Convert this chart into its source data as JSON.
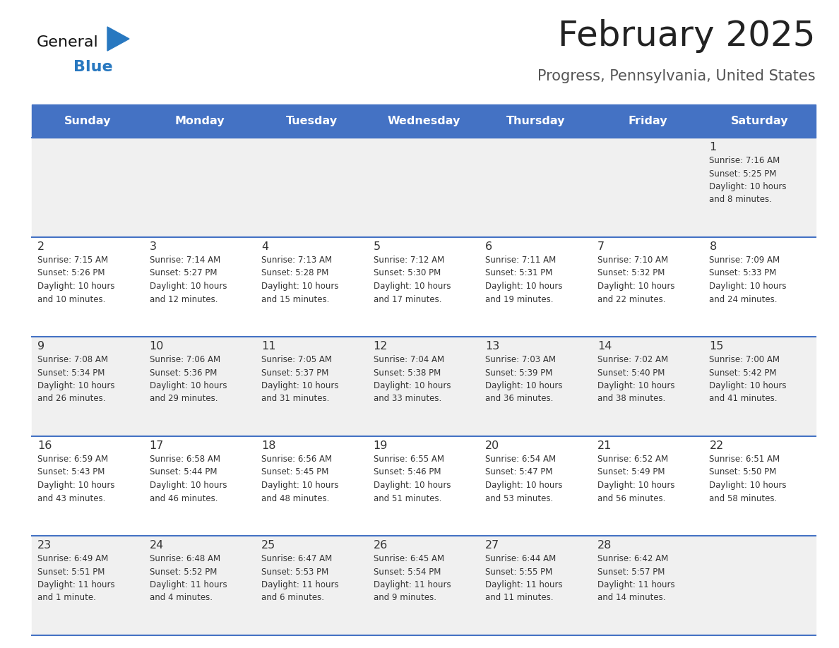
{
  "title": "February 2025",
  "subtitle": "Progress, Pennsylvania, United States",
  "header_color": "#4472C4",
  "header_text_color": "#FFFFFF",
  "days_of_week": [
    "Sunday",
    "Monday",
    "Tuesday",
    "Wednesday",
    "Thursday",
    "Friday",
    "Saturday"
  ],
  "bg_color": "#FFFFFF",
  "row_colors": [
    "#F0F0F0",
    "#FFFFFF",
    "#F0F0F0",
    "#FFFFFF",
    "#F0F0F0"
  ],
  "cell_border_color": "#4472C4",
  "day_number_color": "#333333",
  "text_color": "#333333",
  "title_color": "#222222",
  "subtitle_color": "#555555",
  "generalblue_black": "#111111",
  "generalblue_blue": "#2878C0",
  "calendar_data": [
    [
      {
        "day": 0,
        "info": ""
      },
      {
        "day": 0,
        "info": ""
      },
      {
        "day": 0,
        "info": ""
      },
      {
        "day": 0,
        "info": ""
      },
      {
        "day": 0,
        "info": ""
      },
      {
        "day": 0,
        "info": ""
      },
      {
        "day": 1,
        "info": "Sunrise: 7:16 AM\nSunset: 5:25 PM\nDaylight: 10 hours\nand 8 minutes."
      }
    ],
    [
      {
        "day": 2,
        "info": "Sunrise: 7:15 AM\nSunset: 5:26 PM\nDaylight: 10 hours\nand 10 minutes."
      },
      {
        "day": 3,
        "info": "Sunrise: 7:14 AM\nSunset: 5:27 PM\nDaylight: 10 hours\nand 12 minutes."
      },
      {
        "day": 4,
        "info": "Sunrise: 7:13 AM\nSunset: 5:28 PM\nDaylight: 10 hours\nand 15 minutes."
      },
      {
        "day": 5,
        "info": "Sunrise: 7:12 AM\nSunset: 5:30 PM\nDaylight: 10 hours\nand 17 minutes."
      },
      {
        "day": 6,
        "info": "Sunrise: 7:11 AM\nSunset: 5:31 PM\nDaylight: 10 hours\nand 19 minutes."
      },
      {
        "day": 7,
        "info": "Sunrise: 7:10 AM\nSunset: 5:32 PM\nDaylight: 10 hours\nand 22 minutes."
      },
      {
        "day": 8,
        "info": "Sunrise: 7:09 AM\nSunset: 5:33 PM\nDaylight: 10 hours\nand 24 minutes."
      }
    ],
    [
      {
        "day": 9,
        "info": "Sunrise: 7:08 AM\nSunset: 5:34 PM\nDaylight: 10 hours\nand 26 minutes."
      },
      {
        "day": 10,
        "info": "Sunrise: 7:06 AM\nSunset: 5:36 PM\nDaylight: 10 hours\nand 29 minutes."
      },
      {
        "day": 11,
        "info": "Sunrise: 7:05 AM\nSunset: 5:37 PM\nDaylight: 10 hours\nand 31 minutes."
      },
      {
        "day": 12,
        "info": "Sunrise: 7:04 AM\nSunset: 5:38 PM\nDaylight: 10 hours\nand 33 minutes."
      },
      {
        "day": 13,
        "info": "Sunrise: 7:03 AM\nSunset: 5:39 PM\nDaylight: 10 hours\nand 36 minutes."
      },
      {
        "day": 14,
        "info": "Sunrise: 7:02 AM\nSunset: 5:40 PM\nDaylight: 10 hours\nand 38 minutes."
      },
      {
        "day": 15,
        "info": "Sunrise: 7:00 AM\nSunset: 5:42 PM\nDaylight: 10 hours\nand 41 minutes."
      }
    ],
    [
      {
        "day": 16,
        "info": "Sunrise: 6:59 AM\nSunset: 5:43 PM\nDaylight: 10 hours\nand 43 minutes."
      },
      {
        "day": 17,
        "info": "Sunrise: 6:58 AM\nSunset: 5:44 PM\nDaylight: 10 hours\nand 46 minutes."
      },
      {
        "day": 18,
        "info": "Sunrise: 6:56 AM\nSunset: 5:45 PM\nDaylight: 10 hours\nand 48 minutes."
      },
      {
        "day": 19,
        "info": "Sunrise: 6:55 AM\nSunset: 5:46 PM\nDaylight: 10 hours\nand 51 minutes."
      },
      {
        "day": 20,
        "info": "Sunrise: 6:54 AM\nSunset: 5:47 PM\nDaylight: 10 hours\nand 53 minutes."
      },
      {
        "day": 21,
        "info": "Sunrise: 6:52 AM\nSunset: 5:49 PM\nDaylight: 10 hours\nand 56 minutes."
      },
      {
        "day": 22,
        "info": "Sunrise: 6:51 AM\nSunset: 5:50 PM\nDaylight: 10 hours\nand 58 minutes."
      }
    ],
    [
      {
        "day": 23,
        "info": "Sunrise: 6:49 AM\nSunset: 5:51 PM\nDaylight: 11 hours\nand 1 minute."
      },
      {
        "day": 24,
        "info": "Sunrise: 6:48 AM\nSunset: 5:52 PM\nDaylight: 11 hours\nand 4 minutes."
      },
      {
        "day": 25,
        "info": "Sunrise: 6:47 AM\nSunset: 5:53 PM\nDaylight: 11 hours\nand 6 minutes."
      },
      {
        "day": 26,
        "info": "Sunrise: 6:45 AM\nSunset: 5:54 PM\nDaylight: 11 hours\nand 9 minutes."
      },
      {
        "day": 27,
        "info": "Sunrise: 6:44 AM\nSunset: 5:55 PM\nDaylight: 11 hours\nand 11 minutes."
      },
      {
        "day": 28,
        "info": "Sunrise: 6:42 AM\nSunset: 5:57 PM\nDaylight: 11 hours\nand 14 minutes."
      },
      {
        "day": 0,
        "info": ""
      }
    ]
  ]
}
